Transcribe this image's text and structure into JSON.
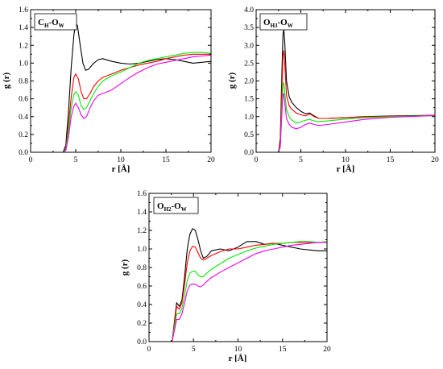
{
  "chart_data": [
    {
      "type": "line",
      "label_parts": [
        [
          "C",
          ""
        ],
        [
          "H",
          "sub"
        ],
        [
          "-O",
          ""
        ],
        [
          "W",
          "sub"
        ]
      ],
      "xlabel": "r [Å]",
      "ylabel": "g (r)",
      "xlim": [
        0,
        20
      ],
      "ylim": [
        0,
        1.6
      ],
      "xticks": [
        0,
        5,
        10,
        15,
        20
      ],
      "yticks": [
        0.0,
        0.2,
        0.4,
        0.6,
        0.8,
        1.0,
        1.2,
        1.4,
        1.6
      ],
      "grid": false,
      "series": [
        {
          "color": "#000000",
          "x": [
            0,
            3.6,
            3.9,
            4.2,
            4.5,
            4.8,
            5.0,
            5.2,
            5.5,
            5.8,
            6.1,
            6.4,
            7.0,
            7.5,
            8.0,
            9.0,
            10.0,
            11.0,
            12.0,
            13.0,
            14.0,
            15.0,
            16.0,
            17.0,
            18.0,
            19.0,
            20.0
          ],
          "y": [
            0,
            0,
            0.08,
            0.45,
            0.95,
            1.32,
            1.45,
            1.42,
            1.2,
            1.0,
            0.92,
            0.93,
            1.0,
            1.04,
            1.05,
            1.02,
            1.0,
            0.99,
            1.0,
            1.02,
            1.04,
            1.05,
            1.04,
            1.02,
            1.0,
            1.01,
            1.02
          ]
        },
        {
          "color": "#ff0000",
          "x": [
            0,
            3.6,
            3.9,
            4.2,
            4.5,
            4.8,
            5.0,
            5.3,
            5.6,
            5.9,
            6.2,
            6.6,
            7.0,
            7.5,
            8.0,
            9.0,
            10.0,
            11.0,
            12.0,
            13.0,
            14.0,
            15.0,
            16.0,
            17.0,
            18.0,
            19.0,
            20.0
          ],
          "y": [
            0,
            0,
            0.04,
            0.3,
            0.62,
            0.84,
            0.88,
            0.82,
            0.68,
            0.6,
            0.6,
            0.66,
            0.74,
            0.8,
            0.84,
            0.88,
            0.92,
            0.95,
            0.98,
            1.0,
            1.02,
            1.05,
            1.07,
            1.09,
            1.1,
            1.1,
            1.1
          ]
        },
        {
          "color": "#00ee00",
          "x": [
            0,
            3.6,
            3.9,
            4.2,
            4.5,
            4.8,
            5.0,
            5.3,
            5.6,
            5.9,
            6.2,
            6.6,
            7.0,
            7.5,
            8.0,
            9.0,
            10.0,
            11.0,
            12.0,
            13.0,
            14.0,
            15.0,
            16.0,
            17.0,
            18.0,
            19.0,
            20.0
          ],
          "y": [
            0,
            0,
            0.03,
            0.24,
            0.5,
            0.65,
            0.68,
            0.64,
            0.52,
            0.48,
            0.5,
            0.58,
            0.66,
            0.74,
            0.8,
            0.86,
            0.9,
            0.95,
            1.0,
            1.03,
            1.05,
            1.07,
            1.09,
            1.11,
            1.12,
            1.12,
            1.11
          ]
        },
        {
          "color": "#ee00ee",
          "x": [
            0,
            3.6,
            3.9,
            4.2,
            4.5,
            4.8,
            5.0,
            5.3,
            5.6,
            5.9,
            6.2,
            6.6,
            7.0,
            7.5,
            8.0,
            9.0,
            10.0,
            11.0,
            12.0,
            13.0,
            14.0,
            15.0,
            16.0,
            17.0,
            18.0,
            19.0,
            20.0
          ],
          "y": [
            0,
            0,
            0.02,
            0.17,
            0.4,
            0.52,
            0.55,
            0.5,
            0.42,
            0.38,
            0.4,
            0.5,
            0.58,
            0.64,
            0.66,
            0.7,
            0.77,
            0.84,
            0.9,
            0.95,
            0.99,
            1.01,
            1.03,
            1.05,
            1.07,
            1.08,
            1.09
          ]
        }
      ]
    },
    {
      "type": "line",
      "label_parts": [
        [
          "O",
          ""
        ],
        [
          "H3",
          "sub"
        ],
        [
          "-O",
          ""
        ],
        [
          "W",
          "sub"
        ]
      ],
      "xlabel": "r [Å]",
      "ylabel": "g (r)",
      "xlim": [
        0,
        20
      ],
      "ylim": [
        0,
        4.0
      ],
      "xticks": [
        0,
        5,
        10,
        15,
        20
      ],
      "yticks": [
        0.0,
        0.5,
        1.0,
        1.5,
        2.0,
        2.5,
        3.0,
        3.5,
        4.0
      ],
      "grid": false,
      "series": [
        {
          "color": "#000000",
          "x": [
            0,
            2.5,
            2.7,
            2.9,
            3.0,
            3.1,
            3.2,
            3.4,
            3.7,
            4.0,
            4.5,
            5.0,
            5.5,
            6.0,
            6.5,
            7.0,
            8.0,
            10.0,
            12.0,
            15.0,
            18.0,
            20.0
          ],
          "y": [
            0,
            0,
            0.4,
            2.4,
            3.3,
            3.45,
            3.1,
            2.0,
            1.55,
            1.4,
            1.25,
            1.15,
            1.08,
            1.1,
            1.02,
            0.95,
            0.95,
            0.97,
            1.0,
            1.02,
            1.03,
            1.04
          ]
        },
        {
          "color": "#ff0000",
          "x": [
            0,
            2.5,
            2.7,
            2.9,
            3.0,
            3.1,
            3.2,
            3.4,
            3.7,
            4.0,
            4.5,
            5.0,
            5.5,
            6.0,
            6.5,
            7.0,
            8.0,
            10.0,
            12.0,
            15.0,
            18.0,
            20.0
          ],
          "y": [
            0,
            0,
            0.3,
            1.9,
            2.7,
            2.85,
            2.5,
            1.6,
            1.3,
            1.2,
            1.1,
            1.05,
            1.02,
            1.08,
            1.0,
            0.95,
            0.95,
            0.97,
            0.99,
            1.01,
            1.02,
            1.04
          ]
        },
        {
          "color": "#00ee00",
          "x": [
            0,
            2.5,
            2.7,
            2.9,
            3.0,
            3.1,
            3.2,
            3.4,
            3.7,
            4.0,
            4.5,
            5.0,
            5.5,
            6.0,
            6.5,
            7.0,
            8.0,
            10.0,
            12.0,
            15.0,
            18.0,
            20.0
          ],
          "y": [
            0,
            0,
            0.2,
            1.4,
            1.9,
            1.95,
            1.7,
            1.2,
            1.0,
            0.9,
            0.82,
            0.85,
            0.9,
            0.92,
            0.88,
            0.86,
            0.88,
            0.93,
            0.97,
            1.0,
            1.02,
            1.03
          ]
        },
        {
          "color": "#ee00ee",
          "x": [
            0,
            2.5,
            2.7,
            2.9,
            3.0,
            3.1,
            3.2,
            3.4,
            3.7,
            4.0,
            4.5,
            5.0,
            5.5,
            6.0,
            6.5,
            7.0,
            8.0,
            10.0,
            12.0,
            15.0,
            18.0,
            20.0
          ],
          "y": [
            0,
            0,
            0.15,
            1.2,
            1.6,
            1.65,
            1.4,
            0.95,
            0.78,
            0.7,
            0.66,
            0.7,
            0.78,
            0.82,
            0.78,
            0.75,
            0.78,
            0.85,
            0.92,
            0.98,
            1.01,
            1.03
          ]
        }
      ]
    },
    {
      "type": "line",
      "label_parts": [
        [
          "O",
          ""
        ],
        [
          "H2",
          "sub"
        ],
        [
          "-O",
          ""
        ],
        [
          "W",
          "sub"
        ]
      ],
      "xlabel": "r [Å]",
      "ylabel": "g (r)",
      "xlim": [
        0,
        20
      ],
      "ylim": [
        0,
        1.6
      ],
      "xticks": [
        0,
        5,
        10,
        15,
        20
      ],
      "yticks": [
        0.0,
        0.2,
        0.4,
        0.6,
        0.8,
        1.0,
        1.2,
        1.4,
        1.6
      ],
      "grid": false,
      "series": [
        {
          "color": "#000000",
          "x": [
            0,
            2.6,
            2.9,
            3.1,
            3.4,
            3.7,
            4.0,
            4.3,
            4.6,
            4.9,
            5.2,
            5.5,
            5.8,
            6.1,
            6.5,
            7.0,
            8.0,
            9.0,
            10.0,
            11.0,
            12.0,
            13.0,
            14.0,
            15.0,
            16.0,
            17.0,
            18.0,
            19.0,
            20.0
          ],
          "y": [
            0,
            0,
            0.25,
            0.42,
            0.38,
            0.45,
            0.7,
            1.0,
            1.16,
            1.22,
            1.2,
            1.1,
            0.98,
            0.9,
            0.92,
            0.98,
            1.0,
            0.98,
            1.02,
            1.08,
            1.08,
            1.05,
            1.06,
            1.04,
            1.02,
            1.0,
            0.99,
            0.98,
            0.98
          ]
        },
        {
          "color": "#ff0000",
          "x": [
            0,
            2.6,
            2.9,
            3.1,
            3.4,
            3.7,
            4.0,
            4.3,
            4.6,
            4.9,
            5.2,
            5.5,
            5.8,
            6.1,
            6.5,
            7.0,
            8.0,
            9.0,
            10.0,
            11.0,
            12.0,
            13.0,
            14.0,
            15.0,
            16.0,
            17.0,
            18.0,
            19.0,
            20.0
          ],
          "y": [
            0,
            0,
            0.22,
            0.38,
            0.35,
            0.42,
            0.62,
            0.85,
            0.98,
            1.03,
            1.02,
            0.96,
            0.9,
            0.88,
            0.9,
            0.93,
            0.97,
            1.0,
            1.0,
            1.02,
            1.04,
            1.05,
            1.06,
            1.06,
            1.07,
            1.07,
            1.07,
            1.07,
            1.07
          ]
        },
        {
          "color": "#00ee00",
          "x": [
            0,
            2.6,
            2.9,
            3.1,
            3.4,
            3.7,
            4.0,
            4.3,
            4.6,
            4.9,
            5.2,
            5.5,
            5.8,
            6.1,
            6.5,
            7.0,
            8.0,
            9.0,
            10.0,
            11.0,
            12.0,
            13.0,
            14.0,
            15.0,
            16.0,
            17.0,
            18.0,
            19.0,
            20.0
          ],
          "y": [
            0,
            0,
            0.18,
            0.3,
            0.3,
            0.36,
            0.5,
            0.66,
            0.74,
            0.76,
            0.76,
            0.72,
            0.7,
            0.7,
            0.74,
            0.78,
            0.84,
            0.9,
            0.94,
            0.98,
            1.01,
            1.03,
            1.05,
            1.06,
            1.07,
            1.08,
            1.08,
            1.07,
            1.08
          ]
        },
        {
          "color": "#ee00ee",
          "x": [
            0,
            2.6,
            2.9,
            3.1,
            3.4,
            3.7,
            4.0,
            4.3,
            4.6,
            4.9,
            5.2,
            5.5,
            5.8,
            6.1,
            6.5,
            7.0,
            8.0,
            9.0,
            10.0,
            11.0,
            12.0,
            13.0,
            14.0,
            15.0,
            16.0,
            17.0,
            18.0,
            19.0,
            20.0
          ],
          "y": [
            0,
            0,
            0.14,
            0.24,
            0.24,
            0.3,
            0.42,
            0.55,
            0.61,
            0.62,
            0.62,
            0.6,
            0.59,
            0.61,
            0.65,
            0.69,
            0.75,
            0.8,
            0.85,
            0.9,
            0.95,
            0.98,
            1.0,
            1.02,
            1.04,
            1.05,
            1.06,
            1.07,
            1.07
          ]
        }
      ]
    }
  ]
}
